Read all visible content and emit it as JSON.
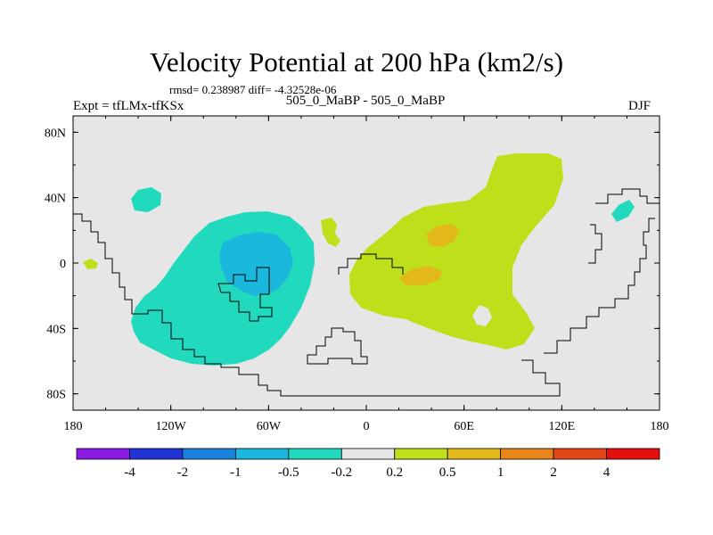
{
  "header": {
    "title": "Velocity Potential at 200 hPa (km2/s)",
    "stats": "rmsd= 0.238987 diff= -4.32528e-06",
    "experiment": "Expt = tfLMx-tfKSx",
    "subtitle": "505_0_MaBP - 505_0_MaBP",
    "season": "DJF"
  },
  "chart_data": {
    "type": "heatmap",
    "title": "Velocity Potential at 200 hPa (km2/s)",
    "xlabel": "",
    "ylabel": "",
    "xlim": [
      -180,
      180
    ],
    "ylim": [
      -90,
      90
    ],
    "x_ticks": [
      {
        "value": -180,
        "label": "180"
      },
      {
        "value": -120,
        "label": "120W"
      },
      {
        "value": -60,
        "label": "60W"
      },
      {
        "value": 0,
        "label": "0"
      },
      {
        "value": 60,
        "label": "60E"
      },
      {
        "value": 120,
        "label": "120E"
      },
      {
        "value": 180,
        "label": "180"
      }
    ],
    "y_ticks": [
      {
        "value": 80,
        "label": "80N"
      },
      {
        "value": 40,
        "label": "40N"
      },
      {
        "value": 0,
        "label": "0"
      },
      {
        "value": -40,
        "label": "40S"
      },
      {
        "value": -80,
        "label": "80S"
      }
    ],
    "colorbar": {
      "levels": [
        "-4",
        "-2",
        "-1",
        "-0.5",
        "-0.2",
        "0.2",
        "0.5",
        "1",
        "2",
        "4"
      ],
      "colors": [
        "#8a1ce6",
        "#2233d6",
        "#1a82dc",
        "#19b8dc",
        "#21d9bd",
        "#e6e6e6",
        "#bde01b",
        "#e3b91a",
        "#e98619",
        "#e34717",
        "#e60f0f"
      ]
    },
    "background_color": "#e6e6e6",
    "regions": [
      {
        "name": "negative-center-west-pacific",
        "range": "-1 to -0.5",
        "center": [
          -68,
          -5
        ],
        "color": "#19b8dc"
      },
      {
        "name": "negative-region-large",
        "range": "-0.5 to -0.2",
        "center": [
          -75,
          -10
        ],
        "color": "#21d9bd"
      },
      {
        "name": "negative-small-north-pacific",
        "range": "-0.5 to -0.2",
        "center": [
          -142,
          38
        ],
        "color": "#21d9bd"
      },
      {
        "name": "negative-small-west-pacific",
        "range": "-0.5 to -0.2",
        "center": [
          155,
          32
        ],
        "color": "#21d9bd"
      },
      {
        "name": "positive-region-large",
        "range": "0.2 to 0.5",
        "center": [
          75,
          10
        ],
        "color": "#bde01b"
      },
      {
        "name": "positive-small-atlantic",
        "range": "0.2 to 0.5",
        "center": [
          -22,
          20
        ],
        "color": "#bde01b"
      },
      {
        "name": "positive-small-far-west",
        "range": "0.2 to 0.5",
        "center": [
          -172,
          0
        ],
        "color": "#bde01b"
      },
      {
        "name": "positive-core-north",
        "range": "0.5 to 1",
        "center": [
          46,
          15
        ],
        "color": "#e3b91a"
      },
      {
        "name": "positive-core-south",
        "range": "0.5 to 1",
        "center": [
          33,
          -7
        ],
        "color": "#e3b91a"
      }
    ]
  }
}
